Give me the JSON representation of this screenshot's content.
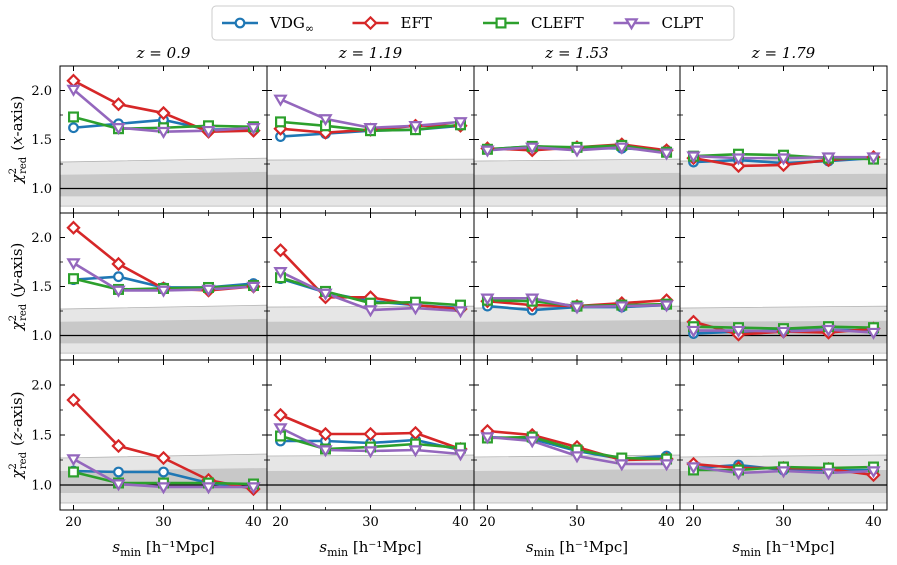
{
  "chart_data": {
    "type": "line",
    "figure": "Reduced chi-squared vs minimum fitting scale for four RSD models",
    "x": [
      20,
      25,
      30,
      35,
      40
    ],
    "x_ticks": [
      20,
      30,
      40
    ],
    "y_ticks": [
      1.0,
      1.5,
      2.0
    ],
    "x_ticks_text": [
      "20",
      "30",
      "40"
    ],
    "y_ticks_text": [
      "1.0",
      "1.5",
      "2.0"
    ],
    "xlim": [
      18.5,
      41.5
    ],
    "ylim": [
      0.75,
      2.25
    ],
    "xlabel": {
      "main": "s",
      "sub": "min",
      "units": " [h⁻¹Mpc]"
    },
    "ylabel": {
      "main": "χ",
      "sup": "2",
      "sub": "red",
      "axis_prefix": "(",
      "axis_suffix": "-axis)"
    },
    "reference_line": 1.0,
    "columns": [
      {
        "title": "z = 0.9",
        "band_outer": [
          0.82,
          1.27,
          0.82,
          1.31
        ],
        "band_inner": [
          0.92,
          1.14,
          0.92,
          1.17
        ]
      },
      {
        "title": "z = 1.19",
        "band_outer": [
          0.82,
          1.29,
          0.82,
          1.3
        ],
        "band_inner": [
          0.92,
          1.14,
          0.92,
          1.15
        ]
      },
      {
        "title": "z = 1.53",
        "band_outer": [
          0.82,
          1.28,
          0.82,
          1.3
        ],
        "band_inner": [
          0.92,
          1.14,
          0.92,
          1.16
        ]
      },
      {
        "title": "z = 1.79",
        "band_outer": [
          0.82,
          1.28,
          0.82,
          1.3
        ],
        "band_inner": [
          0.92,
          1.14,
          0.92,
          1.15
        ]
      }
    ],
    "rows": [
      {
        "axis": "x"
      },
      {
        "axis": "y"
      },
      {
        "axis": "z"
      }
    ],
    "legend": [
      {
        "name": "VDG",
        "sub": "∞"
      },
      {
        "name": "EFT",
        "sub": ""
      },
      {
        "name": "CLEFT",
        "sub": ""
      },
      {
        "name": "CLPT",
        "sub": ""
      }
    ],
    "series": [
      {
        "name": "VDG∞",
        "color": "#1f77b4",
        "marker": "circle"
      },
      {
        "name": "EFT",
        "color": "#d62728",
        "marker": "diamond"
      },
      {
        "name": "CLEFT",
        "color": "#2ca02c",
        "marker": "square"
      },
      {
        "name": "CLPT",
        "color": "#9467bd",
        "marker": "triangle-down"
      }
    ],
    "panels": [
      [
        {
          "values": [
            [
              1.62,
              1.66,
              1.7,
              1.6,
              1.61
            ],
            [
              2.1,
              1.86,
              1.77,
              1.58,
              1.59
            ],
            [
              1.73,
              1.61,
              1.62,
              1.64,
              1.63
            ],
            [
              2.01,
              1.62,
              1.58,
              1.59,
              1.62
            ]
          ]
        },
        {
          "values": [
            [
              1.53,
              1.56,
              1.59,
              1.6,
              1.64
            ],
            [
              1.61,
              1.57,
              1.6,
              1.64,
              1.64
            ],
            [
              1.68,
              1.64,
              1.59,
              1.6,
              1.65
            ],
            [
              1.91,
              1.71,
              1.62,
              1.64,
              1.68
            ]
          ]
        },
        {
          "values": [
            [
              1.4,
              1.43,
              1.41,
              1.41,
              1.39
            ],
            [
              1.41,
              1.39,
              1.42,
              1.45,
              1.39
            ],
            [
              1.4,
              1.43,
              1.42,
              1.44,
              1.37
            ],
            [
              1.39,
              1.42,
              1.39,
              1.42,
              1.36
            ]
          ]
        },
        {
          "values": [
            [
              1.27,
              1.29,
              1.26,
              1.28,
              1.31
            ],
            [
              1.31,
              1.23,
              1.24,
              1.29,
              1.32
            ],
            [
              1.33,
              1.35,
              1.34,
              1.31,
              1.3
            ],
            [
              1.33,
              1.31,
              1.31,
              1.32,
              1.32
            ]
          ]
        }
      ],
      [
        {
          "values": [
            [
              1.57,
              1.6,
              1.49,
              1.49,
              1.53
            ],
            [
              2.1,
              1.73,
              1.48,
              1.46,
              1.5
            ],
            [
              1.58,
              1.47,
              1.48,
              1.49,
              1.51
            ],
            [
              1.74,
              1.46,
              1.46,
              1.47,
              1.5
            ]
          ]
        },
        {
          "values": [
            [
              1.58,
              1.44,
              1.35,
              1.31,
              1.28
            ],
            [
              1.87,
              1.39,
              1.39,
              1.31,
              1.27
            ],
            [
              1.59,
              1.45,
              1.33,
              1.34,
              1.31
            ],
            [
              1.65,
              1.43,
              1.26,
              1.28,
              1.25
            ]
          ]
        },
        {
          "values": [
            [
              1.3,
              1.26,
              1.29,
              1.29,
              1.31
            ],
            [
              1.35,
              1.31,
              1.3,
              1.33,
              1.36
            ],
            [
              1.36,
              1.35,
              1.3,
              1.31,
              1.32
            ],
            [
              1.38,
              1.38,
              1.29,
              1.3,
              1.31
            ]
          ]
        },
        {
          "values": [
            [
              1.02,
              1.04,
              1.05,
              1.06,
              1.05
            ],
            [
              1.14,
              1.01,
              1.04,
              1.03,
              1.07
            ],
            [
              1.09,
              1.08,
              1.07,
              1.09,
              1.08
            ],
            [
              1.05,
              1.05,
              1.04,
              1.06,
              1.03
            ]
          ]
        }
      ],
      [
        {
          "values": [
            [
              1.14,
              1.13,
              1.13,
              1.02,
              0.97
            ],
            [
              1.85,
              1.39,
              1.27,
              1.05,
              0.96
            ],
            [
              1.13,
              1.02,
              1.02,
              1.02,
              1.01
            ],
            [
              1.26,
              1.01,
              0.98,
              0.98,
              0.98
            ]
          ]
        },
        {
          "values": [
            [
              1.44,
              1.44,
              1.42,
              1.45,
              1.35
            ],
            [
              1.7,
              1.51,
              1.51,
              1.52,
              1.36
            ],
            [
              1.49,
              1.36,
              1.38,
              1.41,
              1.37
            ],
            [
              1.57,
              1.35,
              1.34,
              1.35,
              1.31
            ]
          ]
        },
        {
          "values": [
            [
              1.48,
              1.46,
              1.34,
              1.26,
              1.29
            ],
            [
              1.54,
              1.5,
              1.38,
              1.25,
              1.26
            ],
            [
              1.47,
              1.48,
              1.35,
              1.27,
              1.26
            ],
            [
              1.48,
              1.44,
              1.29,
              1.21,
              1.21
            ]
          ]
        },
        {
          "values": [
            [
              1.17,
              1.2,
              1.15,
              1.15,
              1.15
            ],
            [
              1.21,
              1.17,
              1.17,
              1.16,
              1.1
            ],
            [
              1.15,
              1.15,
              1.18,
              1.17,
              1.18
            ],
            [
              1.18,
              1.12,
              1.14,
              1.12,
              1.14
            ]
          ]
        }
      ]
    ]
  }
}
